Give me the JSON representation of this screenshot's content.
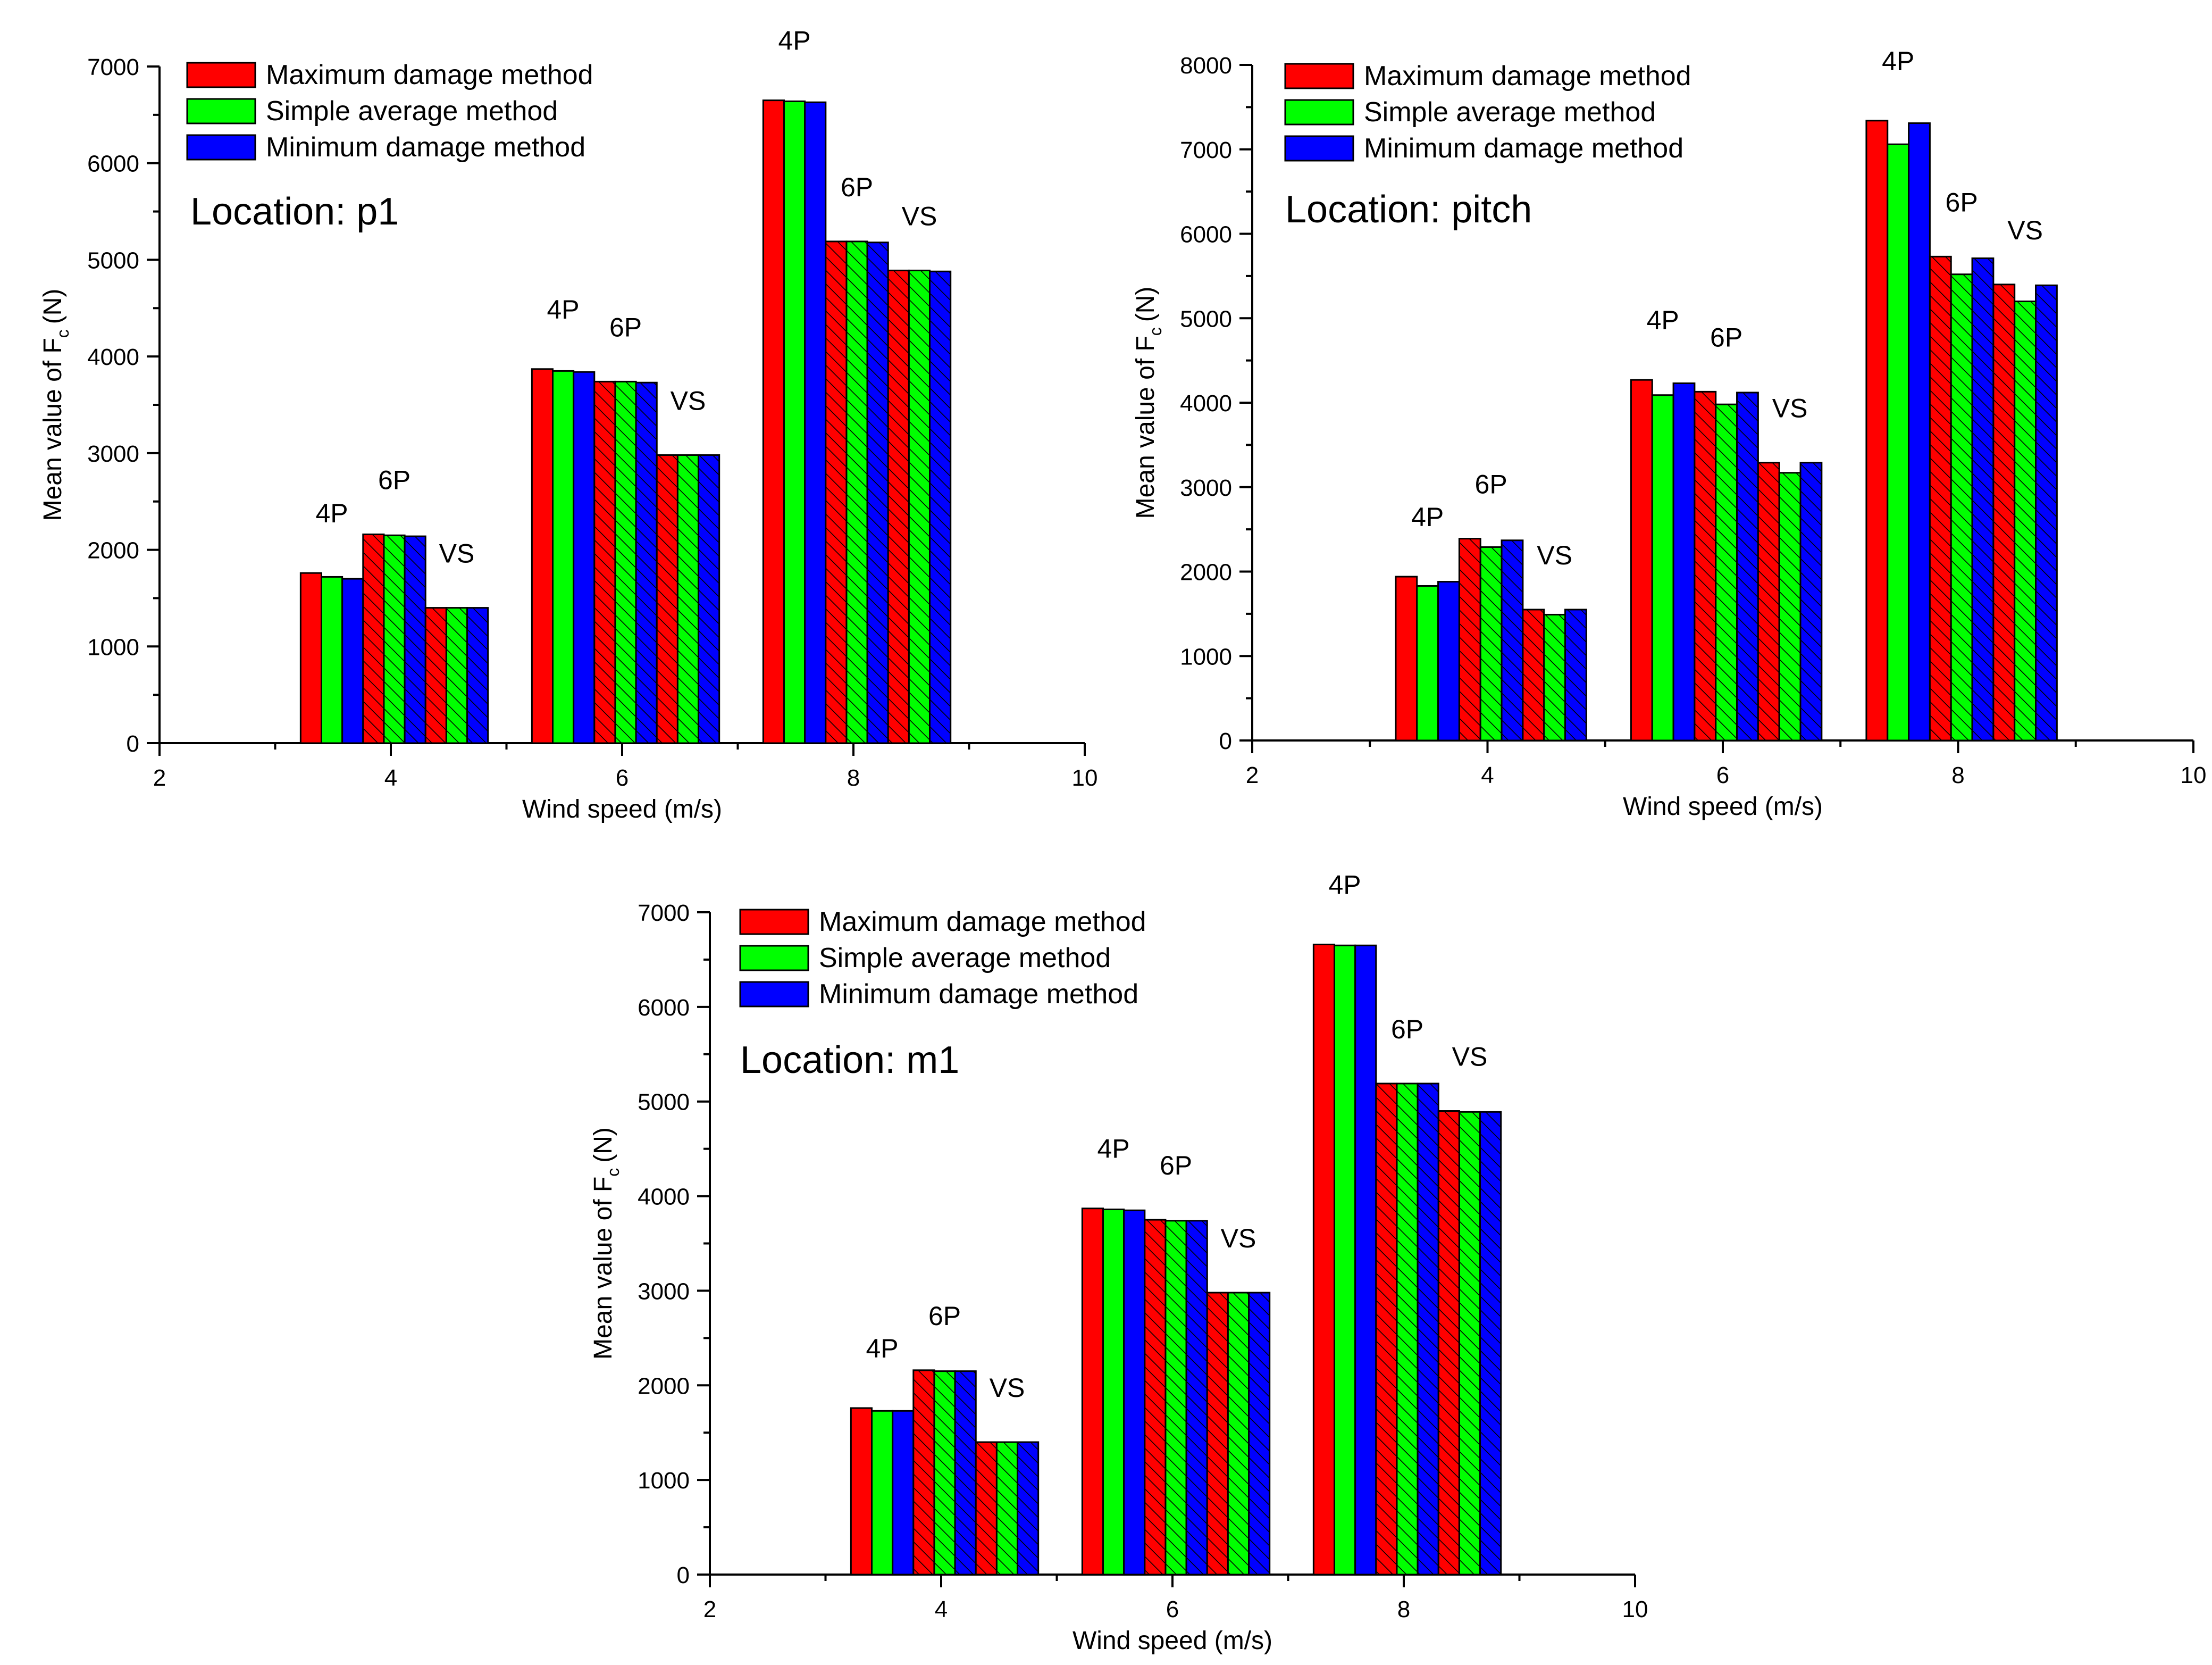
{
  "chart_data": [
    {
      "id": "p1",
      "type": "bar",
      "title": "Location: p1",
      "xlabel": "Wind speed (m/s)",
      "ylabel": "Mean value of F",
      "ylabel_subscript": "c",
      "ylabel_unit": "(N)",
      "xlim": [
        2,
        10
      ],
      "ylim": [
        0,
        7000
      ],
      "xticks": [
        2,
        4,
        6,
        8,
        10
      ],
      "yticks": [
        0,
        1000,
        2000,
        3000,
        4000,
        5000,
        6000,
        7000
      ],
      "legend_position": "top-left",
      "series": [
        {
          "name": "Maximum damage method",
          "color": "#ff0000"
        },
        {
          "name": "Simple average method",
          "color": "#00ff00"
        },
        {
          "name": "Minimum damage method",
          "color": "#0000ff"
        }
      ],
      "groups": [
        {
          "wind_speed": 4,
          "cases": [
            {
              "label": "4P",
              "hatched": false,
              "values": [
                1760,
                1720,
                1700
              ]
            },
            {
              "label": "6P",
              "hatched": true,
              "values": [
                2160,
                2150,
                2140
              ]
            },
            {
              "label": "VS",
              "hatched": true,
              "values": [
                1400,
                1400,
                1400
              ]
            }
          ]
        },
        {
          "wind_speed": 6,
          "cases": [
            {
              "label": "4P",
              "hatched": false,
              "values": [
                3870,
                3850,
                3840
              ]
            },
            {
              "label": "6P",
              "hatched": true,
              "values": [
                3740,
                3740,
                3730
              ]
            },
            {
              "label": "VS",
              "hatched": true,
              "values": [
                2980,
                2980,
                2980
              ]
            }
          ]
        },
        {
          "wind_speed": 8,
          "cases": [
            {
              "label": "4P",
              "hatched": false,
              "values": [
                6650,
                6640,
                6630
              ]
            },
            {
              "label": "6P",
              "hatched": true,
              "values": [
                5190,
                5190,
                5180
              ]
            },
            {
              "label": "VS",
              "hatched": true,
              "values": [
                4890,
                4890,
                4880
              ]
            }
          ]
        }
      ]
    },
    {
      "id": "pitch",
      "type": "bar",
      "title": "Location: pitch",
      "xlabel": "Wind speed (m/s)",
      "ylabel": "Mean value of F",
      "ylabel_subscript": "c",
      "ylabel_unit": "(N)",
      "xlim": [
        2,
        10
      ],
      "ylim": [
        0,
        8000
      ],
      "xticks": [
        2,
        4,
        6,
        8,
        10
      ],
      "yticks": [
        0,
        1000,
        2000,
        3000,
        4000,
        5000,
        6000,
        7000,
        8000
      ],
      "legend_position": "top-left",
      "series": [
        {
          "name": "Maximum damage method",
          "color": "#ff0000"
        },
        {
          "name": "Simple average method",
          "color": "#00ff00"
        },
        {
          "name": "Minimum damage method",
          "color": "#0000ff"
        }
      ],
      "groups": [
        {
          "wind_speed": 4,
          "cases": [
            {
              "label": "4P",
              "hatched": false,
              "values": [
                1940,
                1830,
                1880
              ]
            },
            {
              "label": "6P",
              "hatched": true,
              "values": [
                2390,
                2290,
                2370
              ]
            },
            {
              "label": "VS",
              "hatched": true,
              "values": [
                1550,
                1490,
                1550
              ]
            }
          ]
        },
        {
          "wind_speed": 6,
          "cases": [
            {
              "label": "4P",
              "hatched": false,
              "values": [
                4270,
                4090,
                4230
              ]
            },
            {
              "label": "6P",
              "hatched": true,
              "values": [
                4130,
                3980,
                4120
              ]
            },
            {
              "label": "VS",
              "hatched": true,
              "values": [
                3290,
                3170,
                3290
              ]
            }
          ]
        },
        {
          "wind_speed": 8,
          "cases": [
            {
              "label": "4P",
              "hatched": false,
              "values": [
                7340,
                7060,
                7310
              ]
            },
            {
              "label": "6P",
              "hatched": true,
              "values": [
                5730,
                5520,
                5710
              ]
            },
            {
              "label": "VS",
              "hatched": true,
              "values": [
                5400,
                5200,
                5390
              ]
            }
          ]
        }
      ]
    },
    {
      "id": "m1",
      "type": "bar",
      "title": "Location: m1",
      "xlabel": "Wind speed (m/s)",
      "ylabel": "Mean value of F",
      "ylabel_subscript": "c",
      "ylabel_unit": "(N)",
      "xlim": [
        2,
        10
      ],
      "ylim": [
        0,
        7000
      ],
      "xticks": [
        2,
        4,
        6,
        8,
        10
      ],
      "yticks": [
        0,
        1000,
        2000,
        3000,
        4000,
        5000,
        6000,
        7000
      ],
      "legend_position": "top-left",
      "series": [
        {
          "name": "Maximum damage method",
          "color": "#ff0000"
        },
        {
          "name": "Simple average method",
          "color": "#00ff00"
        },
        {
          "name": "Minimum damage method",
          "color": "#0000ff"
        }
      ],
      "groups": [
        {
          "wind_speed": 4,
          "cases": [
            {
              "label": "4P",
              "hatched": false,
              "values": [
                1760,
                1730,
                1730
              ]
            },
            {
              "label": "6P",
              "hatched": true,
              "values": [
                2160,
                2150,
                2150
              ]
            },
            {
              "label": "VS",
              "hatched": true,
              "values": [
                1400,
                1400,
                1400
              ]
            }
          ]
        },
        {
          "wind_speed": 6,
          "cases": [
            {
              "label": "4P",
              "hatched": false,
              "values": [
                3870,
                3860,
                3850
              ]
            },
            {
              "label": "6P",
              "hatched": true,
              "values": [
                3750,
                3740,
                3740
              ]
            },
            {
              "label": "VS",
              "hatched": true,
              "values": [
                2980,
                2980,
                2980
              ]
            }
          ]
        },
        {
          "wind_speed": 8,
          "cases": [
            {
              "label": "4P",
              "hatched": false,
              "values": [
                6660,
                6650,
                6650
              ]
            },
            {
              "label": "6P",
              "hatched": true,
              "values": [
                5190,
                5190,
                5190
              ]
            },
            {
              "label": "VS",
              "hatched": true,
              "values": [
                4900,
                4890,
                4890
              ]
            }
          ]
        }
      ]
    }
  ]
}
